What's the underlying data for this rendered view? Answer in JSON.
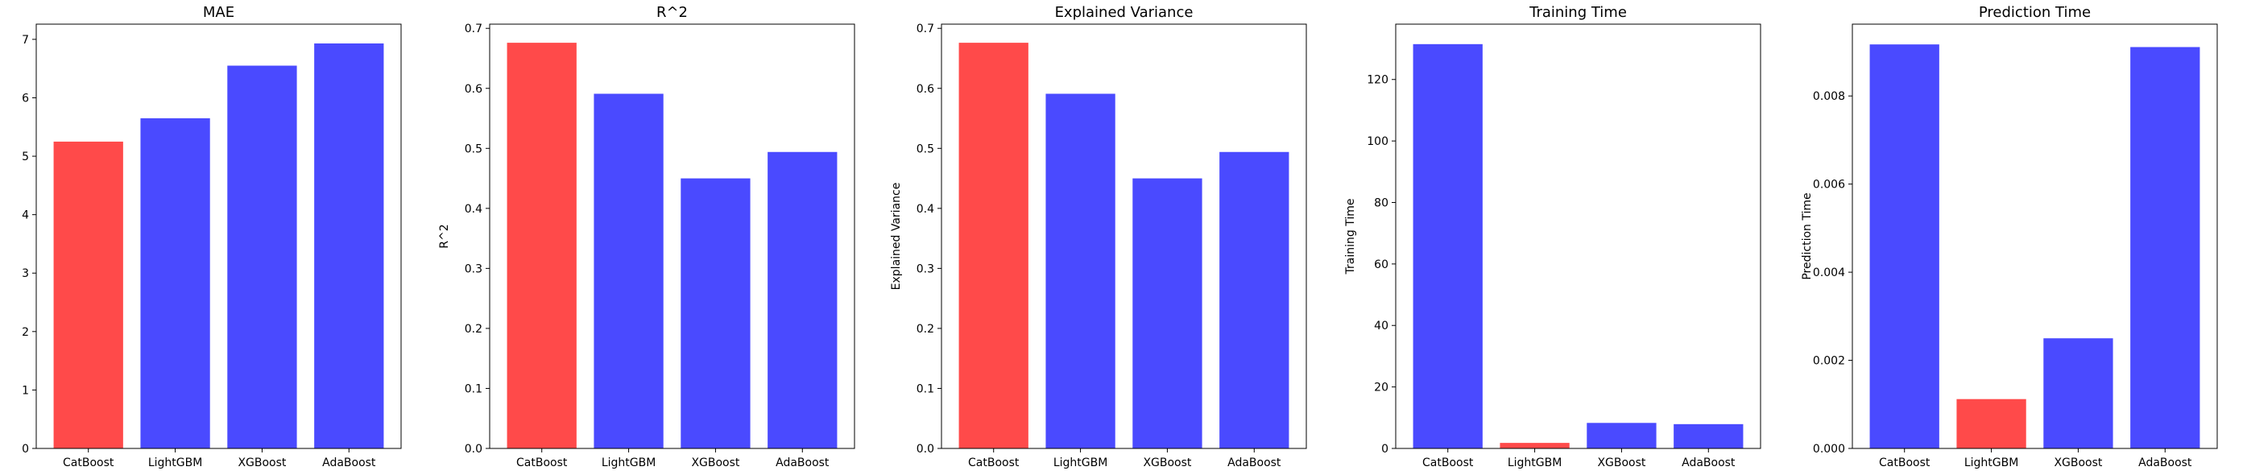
{
  "chart_data": [
    {
      "type": "bar",
      "title": "MAE",
      "xlabel": "",
      "ylabel": "MAE",
      "categories": [
        "CatBoost",
        "LightGBM",
        "XGBoost",
        "AdaBoost"
      ],
      "values": [
        5.25,
        5.65,
        6.55,
        6.93
      ],
      "colors": [
        "#ff4a4a",
        "#4a4aff",
        "#4a4aff",
        "#4a4aff"
      ],
      "ylim": [
        0,
        7.26
      ],
      "yticks": [
        0,
        1,
        2,
        3,
        4,
        5,
        6,
        7
      ],
      "ytick_labels": [
        "0",
        "1",
        "2",
        "3",
        "4",
        "5",
        "6",
        "7"
      ],
      "grid": false,
      "legend": "none"
    },
    {
      "type": "bar",
      "title": "R^2",
      "xlabel": "",
      "ylabel": "R^2",
      "categories": [
        "CatBoost",
        "LightGBM",
        "XGBoost",
        "AdaBoost"
      ],
      "values": [
        0.676,
        0.591,
        0.45,
        0.494
      ],
      "colors": [
        "#ff4a4a",
        "#4a4aff",
        "#4a4aff",
        "#4a4aff"
      ],
      "ylim": [
        0,
        0.707
      ],
      "yticks": [
        0,
        0.1,
        0.2,
        0.3,
        0.4,
        0.5,
        0.6,
        0.7
      ],
      "ytick_labels": [
        "0.0",
        "0.1",
        "0.2",
        "0.3",
        "0.4",
        "0.5",
        "0.6",
        "0.7"
      ],
      "grid": false,
      "legend": "none"
    },
    {
      "type": "bar",
      "title": "Explained Variance",
      "xlabel": "",
      "ylabel": "Explained Variance",
      "categories": [
        "CatBoost",
        "LightGBM",
        "XGBoost",
        "AdaBoost"
      ],
      "values": [
        0.676,
        0.591,
        0.45,
        0.494
      ],
      "colors": [
        "#ff4a4a",
        "#4a4aff",
        "#4a4aff",
        "#4a4aff"
      ],
      "ylim": [
        0,
        0.707
      ],
      "yticks": [
        0,
        0.1,
        0.2,
        0.3,
        0.4,
        0.5,
        0.6,
        0.7
      ],
      "ytick_labels": [
        "0.0",
        "0.1",
        "0.2",
        "0.3",
        "0.4",
        "0.5",
        "0.6",
        "0.7"
      ],
      "grid": false,
      "legend": "none"
    },
    {
      "type": "bar",
      "title": "Training Time",
      "xlabel": "",
      "ylabel": "Training Time",
      "categories": [
        "CatBoost",
        "LightGBM",
        "XGBoost",
        "AdaBoost"
      ],
      "values": [
        131.5,
        1.8,
        8.3,
        7.9
      ],
      "colors": [
        "#4a4aff",
        "#ff4a4a",
        "#4a4aff",
        "#4a4aff"
      ],
      "ylim": [
        0,
        138
      ],
      "yticks": [
        0,
        20,
        40,
        60,
        80,
        100,
        120
      ],
      "ytick_labels": [
        "0",
        "20",
        "40",
        "60",
        "80",
        "100",
        "120"
      ],
      "grid": false,
      "legend": "none"
    },
    {
      "type": "bar",
      "title": "Prediction Time",
      "xlabel": "",
      "ylabel": "Prediction Time",
      "categories": [
        "CatBoost",
        "LightGBM",
        "XGBoost",
        "AdaBoost"
      ],
      "values": [
        0.00917,
        0.00112,
        0.0025,
        0.00911
      ],
      "colors": [
        "#4a4aff",
        "#ff4a4a",
        "#4a4aff",
        "#4a4aff"
      ],
      "ylim": [
        0,
        0.00963
      ],
      "yticks": [
        0,
        0.002,
        0.004,
        0.006,
        0.008
      ],
      "ytick_labels": [
        "0.000",
        "0.002",
        "0.004",
        "0.006",
        "0.008"
      ],
      "grid": false,
      "legend": "none"
    }
  ]
}
